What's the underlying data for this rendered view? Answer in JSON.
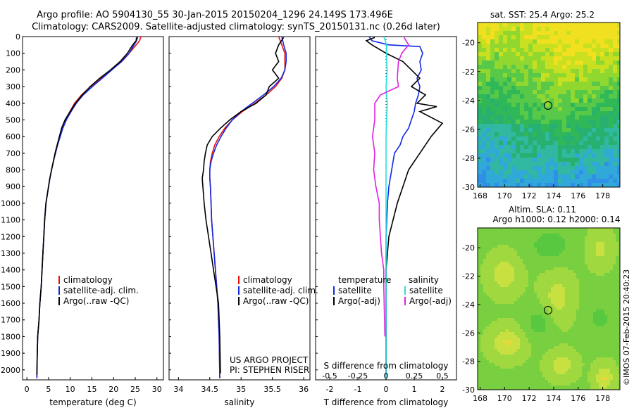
{
  "header": {
    "line1": "Argo profile: AO 5904130_55 30-Jan-2015 20150204_1296 24.149S 173.496E",
    "line2": "Climatology: CARS2009. Satellite-adjusted climatology: synTS_20150131.nc (0.26d later)"
  },
  "credit": "©IMOS 07-Feb-2015 20:40:23",
  "colors": {
    "climatology": "#e81010",
    "satellite": "#1028e0",
    "argo": "#000000",
    "salinity_satellite": "#28e0e0",
    "salinity_argo": "#e020e0"
  },
  "depth_ticks": [
    "0",
    "100",
    "200",
    "300",
    "400",
    "500",
    "600",
    "700",
    "800",
    "900",
    "1000",
    "1100",
    "1200",
    "1300",
    "1400",
    "1500",
    "1600",
    "1700",
    "1800",
    "1900",
    "2000"
  ],
  "temperature_panel": {
    "xlabel": "temperature (deg C)",
    "xticks": [
      "0",
      "5",
      "10",
      "15",
      "20",
      "25",
      "30"
    ],
    "legend": [
      "climatology",
      "satellite-adj. clim.",
      "Argo(..raw -QC)"
    ]
  },
  "salinity_panel": {
    "xlabel": "salinity",
    "xticks": [
      "34",
      "34.5",
      "35",
      "35.5",
      "36"
    ],
    "legend": [
      "climatology",
      "satellite-adj. clim.",
      "Argo(..raw -QC)"
    ],
    "project_line1": "US ARGO PROJECT",
    "project_line2": "PI: STEPHEN RISER"
  },
  "difference_panel": {
    "xlabel": "T difference from climatology",
    "xticks": [
      "-2",
      "-1",
      "0",
      "1",
      "2"
    ],
    "top_label": "S difference from climatology",
    "top_ticks": [
      "-0.5",
      "-0.25",
      "0",
      "0.25",
      "0.5"
    ],
    "legend_t_title": "temperature",
    "legend_t_items": [
      "satellite",
      "Argo(-adj)"
    ],
    "legend_s_title": "salinity",
    "legend_s_items": [
      "satellite",
      "Argo(-adj)"
    ]
  },
  "sst_map": {
    "title": "sat. SST: 25.4  Argo: 25.2",
    "xticks": [
      "168",
      "170",
      "172",
      "174",
      "176",
      "178"
    ],
    "yticks": [
      "-20",
      "-22",
      "-24",
      "-26",
      "-28",
      "-30"
    ]
  },
  "sla_map": {
    "title1": "Altim. SLA: 0.11",
    "title2": "Argo h1000: 0.12 h2000: 0.14",
    "xticks": [
      "168",
      "170",
      "172",
      "174",
      "176",
      "178"
    ],
    "yticks": [
      "-20",
      "-22",
      "-24",
      "-26",
      "-28",
      "-30"
    ]
  },
  "chart_data": [
    {
      "type": "line",
      "title": "",
      "xlabel": "temperature (deg C)",
      "ylabel": "",
      "xlim": [
        -1,
        31.5
      ],
      "ylim": [
        2060,
        0
      ],
      "series": [
        {
          "name": "climatology",
          "x": [
            26.3,
            26.0,
            25.2,
            23.6,
            21.9,
            19.5,
            17.0,
            14.7,
            12.6,
            11.0,
            9.9,
            8.9,
            8.2,
            7.6,
            7.0,
            6.5,
            6.1,
            5.7,
            5.3,
            5.0,
            4.7,
            4.4,
            4.1,
            3.9,
            3.7,
            3.5,
            3.3,
            3.0,
            2.8,
            2.5,
            2.4,
            2.3
          ],
          "y": [
            0,
            25,
            50,
            100,
            150,
            200,
            250,
            300,
            350,
            400,
            450,
            500,
            550,
            600,
            650,
            700,
            750,
            800,
            850,
            900,
            950,
            1000,
            1100,
            1200,
            1300,
            1400,
            1500,
            1600,
            1700,
            1800,
            1900,
            2050
          ]
        },
        {
          "name": "satellite-adj. clim.",
          "x": [
            25.6,
            25.3,
            24.7,
            23.6,
            21.8,
            19.6,
            17.4,
            15.1,
            13.0,
            11.4,
            10.2,
            9.1,
            8.3,
            7.7,
            7.1,
            6.6,
            6.1,
            5.7,
            5.3,
            5.0,
            4.7,
            4.4,
            4.1,
            3.9,
            3.7,
            3.5,
            3.3,
            3.0,
            2.8,
            2.5,
            2.4,
            2.3
          ],
          "y": [
            0,
            25,
            50,
            100,
            150,
            200,
            250,
            300,
            350,
            400,
            450,
            500,
            550,
            600,
            650,
            700,
            750,
            800,
            850,
            900,
            950,
            1000,
            1100,
            1200,
            1300,
            1400,
            1500,
            1600,
            1700,
            1800,
            1900,
            2050
          ]
        },
        {
          "name": "Argo(..raw -QC)",
          "x": [
            25.3,
            25.2,
            24.4,
            23.2,
            21.5,
            19.3,
            16.8,
            14.6,
            12.8,
            11.2,
            10.0,
            8.8,
            8.0,
            7.5,
            7.0,
            6.5,
            6.1,
            5.7,
            5.3,
            5.0,
            4.7,
            4.4,
            4.1,
            3.9,
            3.7,
            3.5,
            3.3,
            3.0,
            2.8,
            2.5,
            2.4,
            2.3
          ],
          "y": [
            5,
            25,
            50,
            100,
            150,
            200,
            250,
            300,
            350,
            400,
            450,
            500,
            550,
            600,
            650,
            700,
            750,
            800,
            850,
            900,
            950,
            1000,
            1100,
            1200,
            1300,
            1400,
            1500,
            1600,
            1700,
            1800,
            1900,
            2030
          ]
        }
      ]
    },
    {
      "type": "line",
      "title": "",
      "xlabel": "salinity",
      "ylabel": "",
      "xlim": [
        33.85,
        36.1
      ],
      "ylim": [
        2060,
        0
      ],
      "series": [
        {
          "name": "climatology",
          "x": [
            35.6,
            35.65,
            35.7,
            35.7,
            35.7,
            35.65,
            35.55,
            35.4,
            35.22,
            35.02,
            34.86,
            34.74,
            34.65,
            34.58,
            34.54,
            34.51,
            34.5,
            34.5,
            34.51,
            34.52,
            34.53,
            34.55,
            34.57,
            34.59,
            34.61,
            34.63,
            34.65,
            34.66
          ],
          "y": [
            0,
            50,
            100,
            150,
            200,
            250,
            300,
            350,
            400,
            450,
            500,
            550,
            600,
            650,
            700,
            750,
            800,
            850,
            900,
            1000,
            1100,
            1200,
            1300,
            1400,
            1500,
            1600,
            1800,
            2050
          ]
        },
        {
          "name": "satellite-adj. clim.",
          "x": [
            35.65,
            35.68,
            35.72,
            35.72,
            35.7,
            35.64,
            35.52,
            35.36,
            35.18,
            35.0,
            34.86,
            34.76,
            34.68,
            34.61,
            34.56,
            34.52,
            34.5,
            34.5,
            34.51,
            34.52,
            34.53,
            34.55,
            34.57,
            34.59,
            34.61,
            34.63,
            34.65,
            34.66
          ],
          "y": [
            0,
            50,
            100,
            150,
            200,
            250,
            300,
            350,
            400,
            450,
            500,
            550,
            600,
            650,
            700,
            750,
            800,
            850,
            900,
            1000,
            1100,
            1200,
            1300,
            1400,
            1500,
            1600,
            1800,
            2050
          ]
        },
        {
          "name": "Argo(..raw -QC)",
          "x": [
            35.68,
            35.6,
            35.55,
            35.6,
            35.5,
            35.6,
            35.45,
            35.4,
            35.24,
            35.0,
            34.82,
            34.67,
            34.54,
            34.46,
            34.43,
            34.41,
            34.4,
            34.38,
            34.39,
            34.41,
            34.44,
            34.48,
            34.52,
            34.56,
            34.6,
            34.64,
            34.66,
            34.67
          ],
          "y": [
            5,
            50,
            100,
            150,
            200,
            250,
            300,
            350,
            400,
            450,
            500,
            550,
            600,
            650,
            700,
            750,
            800,
            850,
            900,
            1000,
            1100,
            1200,
            1300,
            1400,
            1500,
            1600,
            1800,
            2020
          ]
        }
      ]
    },
    {
      "type": "line",
      "title": "",
      "xlabel": "T difference from climatology",
      "ylabel": "",
      "xlim": [
        -2.5,
        2.5
      ],
      "ylim": [
        2060,
        0
      ],
      "series": [
        {
          "name": "T satellite",
          "x": [
            -0.6,
            -0.5,
            0.1,
            1.2,
            1.3,
            1.2,
            1.25,
            1.1,
            1.2,
            1.15,
            1.05,
            1.0,
            0.9,
            0.8,
            0.6,
            0.5,
            0.3,
            0.2,
            0.1,
            0.05,
            0.0,
            0.0,
            0.0
          ],
          "y": [
            0,
            25,
            50,
            60,
            100,
            150,
            200,
            250,
            300,
            350,
            400,
            450,
            500,
            550,
            600,
            650,
            700,
            800,
            900,
            1000,
            1200,
            1500,
            2050
          ]
        },
        {
          "name": "T Argo(-adj)",
          "x": [
            -0.4,
            -0.7,
            -0.5,
            0.0,
            0.6,
            1.2,
            0.9,
            1.4,
            1.1,
            1.8,
            1.2,
            2.0,
            1.6,
            1.2,
            0.8,
            0.6,
            0.4,
            0.25,
            0.1,
            0.0,
            0.0,
            0.0
          ],
          "y": [
            5,
            25,
            50,
            100,
            150,
            250,
            300,
            350,
            400,
            420,
            450,
            520,
            600,
            700,
            800,
            900,
            1000,
            1100,
            1200,
            1400,
            1700,
            2030
          ]
        },
        {
          "name": "S satellite",
          "x": [
            -0.02,
            0.005,
            0.005,
            0.005,
            0.01,
            0.0,
            0.01,
            0.005,
            0.0,
            0.0,
            0.0,
            0.0,
            0.0,
            0.0,
            0.0
          ],
          "y": [
            0,
            50,
            100,
            150,
            200,
            300,
            400,
            500,
            600,
            700,
            800,
            1000,
            1200,
            1500,
            2050
          ]
        },
        {
          "name": "S Argo(-adj)",
          "x": [
            0.16,
            0.2,
            0.14,
            0.11,
            0.1,
            0.11,
            -0.05,
            -0.1,
            -0.1,
            -0.12,
            -0.1,
            -0.11,
            -0.09,
            -0.06,
            -0.06,
            -0.05,
            -0.04,
            -0.02,
            -0.02,
            -0.01
          ],
          "y": [
            5,
            50,
            100,
            150,
            250,
            300,
            350,
            400,
            500,
            600,
            700,
            800,
            900,
            1000,
            1100,
            1200,
            1300,
            1400,
            1500,
            1800
          ]
        }
      ]
    }
  ]
}
